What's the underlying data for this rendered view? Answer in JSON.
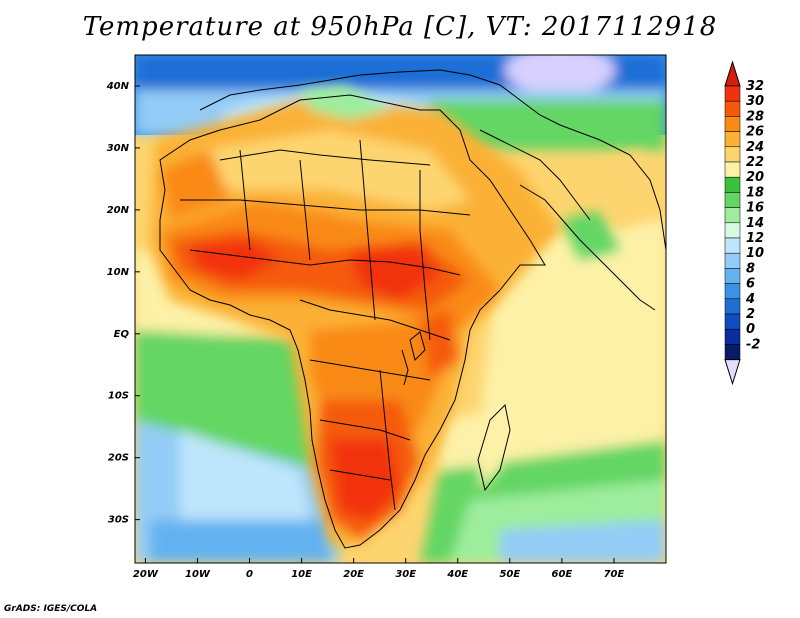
{
  "title": "Temperature at 950hPa [C], VT: 2017112918",
  "credit": "GrADS: IGES/COLA",
  "map": {
    "lon_range": [
      -22,
      80
    ],
    "lat_range": [
      -37,
      45
    ],
    "lon_ticks": [
      {
        "lon": -20,
        "label": "20W"
      },
      {
        "lon": -10,
        "label": "10W"
      },
      {
        "lon": 0,
        "label": "0"
      },
      {
        "lon": 10,
        "label": "10E"
      },
      {
        "lon": 20,
        "label": "20E"
      },
      {
        "lon": 30,
        "label": "30E"
      },
      {
        "lon": 40,
        "label": "40E"
      },
      {
        "lon": 50,
        "label": "50E"
      },
      {
        "lon": 60,
        "label": "60E"
      },
      {
        "lon": 70,
        "label": "70E"
      }
    ],
    "lat_ticks": [
      {
        "lat": 40,
        "label": "40N"
      },
      {
        "lat": 30,
        "label": "30N"
      },
      {
        "lat": 20,
        "label": "20N"
      },
      {
        "lat": 10,
        "label": "10N"
      },
      {
        "lat": 0,
        "label": "EQ"
      },
      {
        "lat": -10,
        "label": "10S"
      },
      {
        "lat": -20,
        "label": "20S"
      },
      {
        "lat": -30,
        "label": "30S"
      }
    ]
  },
  "colorbar": {
    "levels": [
      {
        "label": "32",
        "color": "#f2300f"
      },
      {
        "label": "30",
        "color": "#f55a0a"
      },
      {
        "label": "28",
        "color": "#f98a13"
      },
      {
        "label": "26",
        "color": "#fbb136"
      },
      {
        "label": "24",
        "color": "#fdd56f"
      },
      {
        "label": "22",
        "color": "#fdf1a8"
      },
      {
        "label": "20",
        "color": "#3cc13c"
      },
      {
        "label": "18",
        "color": "#64d664"
      },
      {
        "label": "16",
        "color": "#9ded9d"
      },
      {
        "label": "14",
        "color": "#d6fadf"
      },
      {
        "label": "12",
        "color": "#bee5fb"
      },
      {
        "label": "10",
        "color": "#93ccf6"
      },
      {
        "label": "8",
        "color": "#64b2f0"
      },
      {
        "label": "6",
        "color": "#3a92e4"
      },
      {
        "label": "4",
        "color": "#1e6ed6"
      },
      {
        "label": "2",
        "color": "#104cbf"
      },
      {
        "label": "0",
        "color": "#0a2c9c"
      },
      {
        "label": "-2",
        "color": "#081c66"
      }
    ],
    "top_color": "#d41f10",
    "bottom_color": "#e6dcff"
  }
}
